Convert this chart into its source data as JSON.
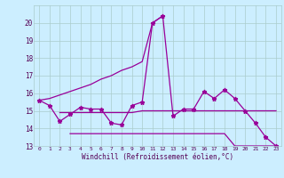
{
  "background_color": "#cceeff",
  "grid_color": "#aacccc",
  "line_color": "#990099",
  "x_values": [
    0,
    1,
    2,
    3,
    4,
    5,
    6,
    7,
    8,
    9,
    10,
    11,
    12,
    13,
    14,
    15,
    16,
    17,
    18,
    19,
    20,
    21,
    22,
    23
  ],
  "series1_y": [
    15.6,
    15.3,
    14.4,
    14.8,
    15.2,
    15.1,
    15.1,
    14.3,
    14.2,
    15.3,
    15.5,
    20.0,
    20.4,
    14.7,
    15.1,
    15.1,
    16.1,
    15.7,
    16.2,
    15.7,
    15.0,
    14.3,
    13.5,
    13.0
  ],
  "series2_y": [
    15.6,
    15.7,
    15.9,
    16.1,
    16.3,
    16.5,
    16.8,
    17.0,
    17.3,
    17.5,
    17.8,
    20.0,
    20.4,
    null,
    null,
    null,
    null,
    null,
    null,
    null,
    null,
    null,
    null,
    null
  ],
  "series3_y": [
    null,
    null,
    14.9,
    14.9,
    14.9,
    14.9,
    14.9,
    14.9,
    14.9,
    14.9,
    15.0,
    15.0,
    15.0,
    15.0,
    15.0,
    15.0,
    15.0,
    15.0,
    15.0,
    15.0,
    15.0,
    15.0,
    15.0,
    15.0
  ],
  "series4_y": [
    null,
    null,
    null,
    13.7,
    13.7,
    13.7,
    13.7,
    13.7,
    13.7,
    13.7,
    13.7,
    13.7,
    13.7,
    13.7,
    13.7,
    13.7,
    13.7,
    13.7,
    13.7,
    13.0,
    13.0,
    13.0,
    13.0,
    13.0
  ],
  "xlabel": "Windchill (Refroidissement éolien,°C)",
  "ylim": [
    13,
    21
  ],
  "xlim": [
    -0.5,
    23.5
  ],
  "yticks": [
    13,
    14,
    15,
    16,
    17,
    18,
    19,
    20
  ],
  "xtick_labels": [
    "0",
    "1",
    "2",
    "3",
    "4",
    "5",
    "6",
    "7",
    "8",
    "9",
    "10",
    "11",
    "12",
    "13",
    "14",
    "15",
    "16",
    "17",
    "18",
    "19",
    "20",
    "21",
    "22",
    "23"
  ]
}
